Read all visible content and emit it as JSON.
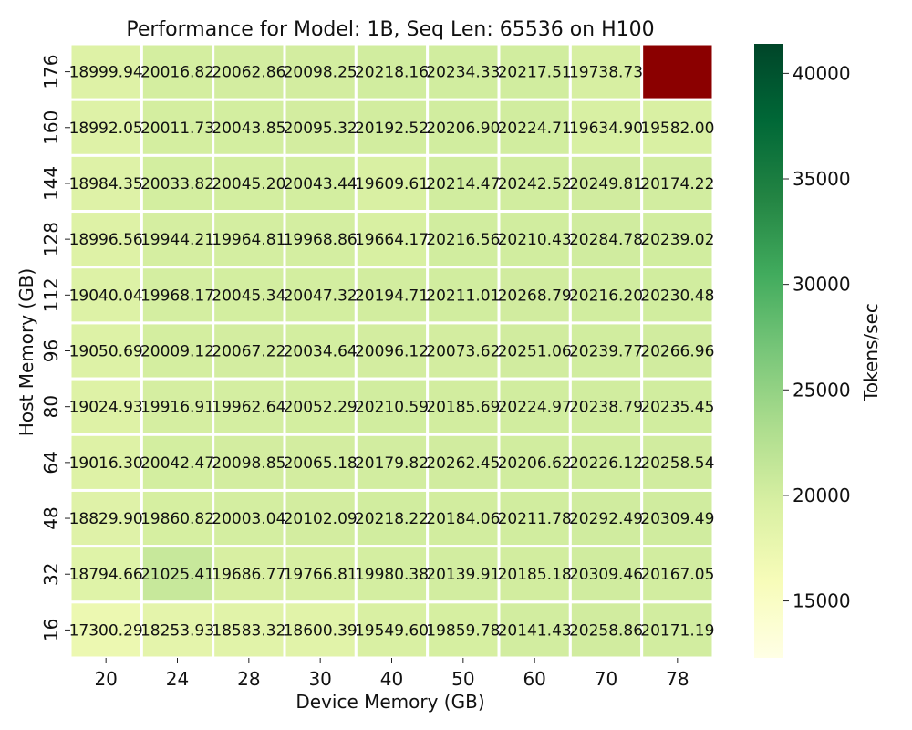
{
  "chart_data": {
    "type": "heatmap",
    "title": "Performance for Model: 1B, Seq Len: 65536 on H100",
    "xlabel": "Device Memory (GB)",
    "ylabel": "Host Memory (GB)",
    "colorbar_label": "Tokens/sec",
    "x": [
      "20",
      "24",
      "28",
      "30",
      "40",
      "50",
      "60",
      "70",
      "78"
    ],
    "y": [
      "176",
      "160",
      "144",
      "128",
      "112",
      "96",
      "80",
      "64",
      "48",
      "32",
      "16"
    ],
    "values": [
      [
        18999.94,
        20016.82,
        20062.86,
        20098.25,
        20218.16,
        20234.33,
        20217.51,
        19738.73,
        null
      ],
      [
        18992.05,
        20011.73,
        20043.85,
        20095.32,
        20192.52,
        20206.9,
        20224.71,
        19634.9,
        19582.0
      ],
      [
        18984.35,
        20033.82,
        20045.2,
        20043.44,
        19609.61,
        20214.47,
        20242.52,
        20249.81,
        20174.22
      ],
      [
        18996.56,
        19944.21,
        19964.81,
        19968.86,
        19664.17,
        20216.56,
        20210.43,
        20284.78,
        20239.02
      ],
      [
        19040.04,
        19968.17,
        20045.34,
        20047.32,
        20194.71,
        20211.01,
        20268.79,
        20216.2,
        20230.48
      ],
      [
        19050.69,
        20009.12,
        20067.22,
        20034.64,
        20096.12,
        20073.62,
        20251.06,
        20239.77,
        20266.96
      ],
      [
        19024.93,
        19916.91,
        19962.64,
        20052.29,
        20210.59,
        20185.69,
        20224.97,
        20238.79,
        20235.45
      ],
      [
        19016.3,
        20042.47,
        20098.85,
        20065.18,
        20179.82,
        20262.45,
        20206.62,
        20226.12,
        20258.54
      ],
      [
        18829.9,
        19860.82,
        20003.04,
        20102.09,
        20218.22,
        20184.06,
        20211.78,
        20292.49,
        20309.49
      ],
      [
        18794.66,
        21025.41,
        19686.77,
        19766.81,
        19980.38,
        20139.91,
        20185.18,
        20309.46,
        20167.05
      ],
      [
        17300.29,
        18253.93,
        18583.32,
        18600.39,
        19549.6,
        19859.78,
        20141.43,
        20258.86,
        20171.19
      ]
    ],
    "missing_color": "#8b0000",
    "colormap": "YlGn",
    "vmin": 12300,
    "vmax": 41400,
    "colorbar_ticks": [
      15000,
      20000,
      25000,
      30000,
      35000,
      40000
    ],
    "grid_line_color": "#ffffff"
  }
}
